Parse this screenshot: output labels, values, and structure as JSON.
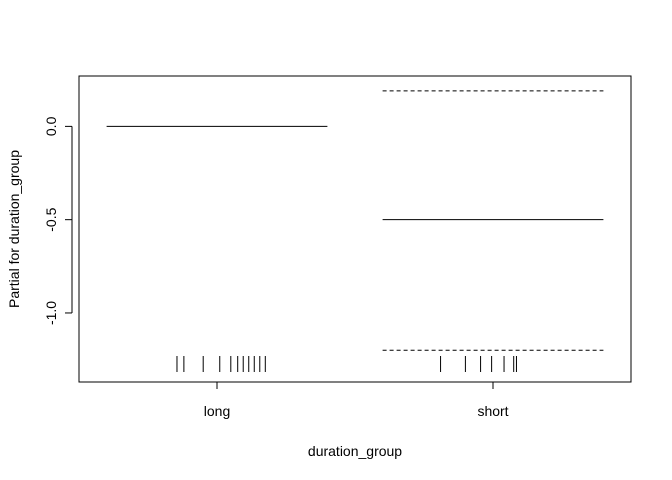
{
  "chart_data": {
    "type": "partial_effect",
    "title": "",
    "xlabel": "duration_group",
    "ylabel": "Partial for duration_group",
    "categories": [
      "long",
      "short"
    ],
    "ylim": [
      -1.37,
      0.27
    ],
    "yticks": [
      0.0,
      -0.5,
      -1.0
    ],
    "ytick_labels": [
      "0.0",
      "-0.5",
      "-1.0"
    ],
    "series": [
      {
        "category": "long",
        "estimate": 0.0,
        "rug_offsets": [
          -0.145,
          -0.12,
          -0.05,
          0.01,
          0.05,
          0.075,
          0.095,
          0.115,
          0.135,
          0.155,
          0.175
        ]
      },
      {
        "category": "short",
        "estimate": -0.5,
        "upper": 0.19,
        "lower": -1.2,
        "rug_offsets": [
          -0.19,
          -0.1,
          -0.045,
          -0.005,
          0.04,
          0.075,
          0.085
        ]
      }
    ]
  }
}
